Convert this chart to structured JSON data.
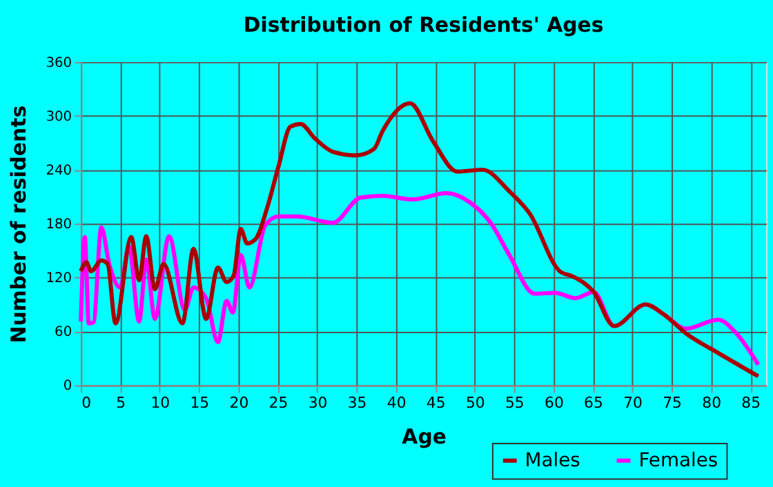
{
  "chart_data": {
    "type": "line",
    "title": "Distribution of Residents' Ages",
    "xlabel": "Age",
    "ylabel": "Number of residents",
    "xlim": [
      0,
      87
    ],
    "xticks": [
      0,
      5,
      10,
      15,
      20,
      25,
      30,
      35,
      40,
      45,
      50,
      55,
      60,
      65,
      70,
      75,
      80,
      85
    ],
    "ylim": [
      0,
      360
    ],
    "yticks": [
      0,
      60,
      120,
      180,
      240,
      300,
      360
    ],
    "grid": true,
    "legend": "bottom right",
    "series": [
      {
        "name": "Males",
        "color": "#aa0000",
        "x": [
          0,
          0.7,
          1.3,
          2.6,
          3.4,
          4.4,
          6.4,
          7.4,
          8.3,
          9.4,
          10.5,
          12.9,
          14.3,
          15.9,
          17.4,
          18.5,
          19.4,
          20.3,
          21.1,
          22.2,
          23.7,
          25.1,
          26.6,
          27.9,
          29.7,
          32,
          34.9,
          37.2,
          38.3,
          41.8,
          44.7,
          47.8,
          51,
          54.4,
          57,
          60.8,
          62.5,
          65.1,
          67.7,
          71.7,
          74,
          76.8,
          80.9,
          86
        ],
        "values": [
          127,
          137,
          127,
          139,
          135,
          69,
          165,
          117,
          166,
          107,
          135,
          69,
          152,
          74,
          131,
          115,
          122,
          174,
          158,
          163,
          199,
          244,
          288,
          291,
          275,
          260,
          256,
          263,
          283,
          314,
          272,
          238,
          240,
          216,
          191,
          127,
          121,
          104,
          66,
          90,
          79,
          58,
          36,
          10
        ]
      },
      {
        "name": "Females",
        "color": "#ff00ff",
        "x": [
          0,
          0.5,
          1,
          1.6,
          2.6,
          3.6,
          5,
          6.1,
          7.4,
          8.3,
          9.4,
          11.2,
          13.2,
          14.3,
          15.9,
          17.4,
          18.5,
          19.3,
          20.3,
          21.4,
          23.4,
          25.1,
          27.4,
          32,
          35.5,
          38.3,
          42.1,
          46.4,
          49.5,
          52.1,
          54.4,
          57.6,
          60.2,
          62.8,
          65.1,
          67.7,
          71.7,
          74,
          76.8,
          80.9,
          83.2,
          86
        ],
        "values": [
          71,
          165,
          69,
          70,
          176,
          135,
          109,
          155,
          71,
          140,
          74,
          166,
          84,
          109,
          97,
          48,
          94,
          81,
          145,
          109,
          178,
          188,
          188,
          181,
          209,
          211,
          207,
          214,
          203,
          180,
          145,
          102,
          103,
          97,
          104,
          66,
          90,
          79,
          63,
          73,
          58,
          23
        ]
      }
    ]
  }
}
